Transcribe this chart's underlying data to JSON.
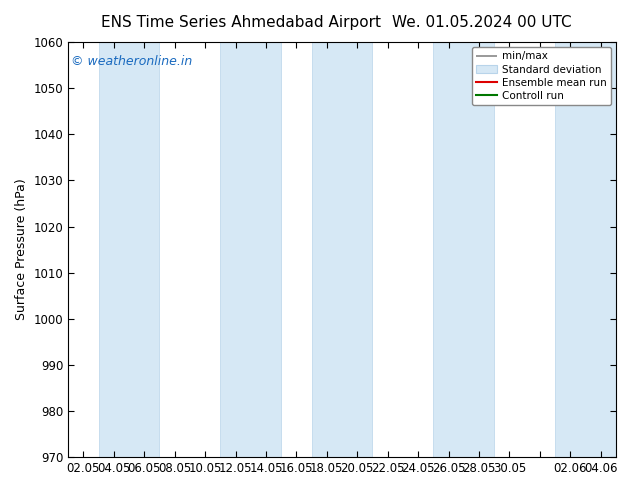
{
  "title_left": "ENS Time Series Ahmedabad Airport",
  "title_right": "We. 01.05.2024 00 UTC",
  "ylabel": "Surface Pressure (hPa)",
  "ylim": [
    970,
    1060
  ],
  "yticks": [
    970,
    980,
    990,
    1000,
    1010,
    1020,
    1030,
    1040,
    1050,
    1060
  ],
  "xtick_labels": [
    "02.05",
    "04.05",
    "06.05",
    "08.05",
    "10.05",
    "12.05",
    "14.05",
    "16.05",
    "18.05",
    "20.05",
    "22.05",
    "24.05",
    "26.05",
    "28.05",
    "30.05",
    "",
    "02.06",
    "04.06"
  ],
  "watermark": "© weatheronline.in",
  "watermark_color": "#1a6abf",
  "bg_color": "#ffffff",
  "plot_bg_color": "#ffffff",
  "band_color": "#d6e8f5",
  "band_alpha": 1.0,
  "band_edge_color": "#b8d4ea",
  "legend_items": [
    "min/max",
    "Standard deviation",
    "Ensemble mean run",
    "Controll run"
  ],
  "title_fontsize": 11,
  "axis_label_fontsize": 9,
  "tick_fontsize": 8.5,
  "watermark_fontsize": 9
}
